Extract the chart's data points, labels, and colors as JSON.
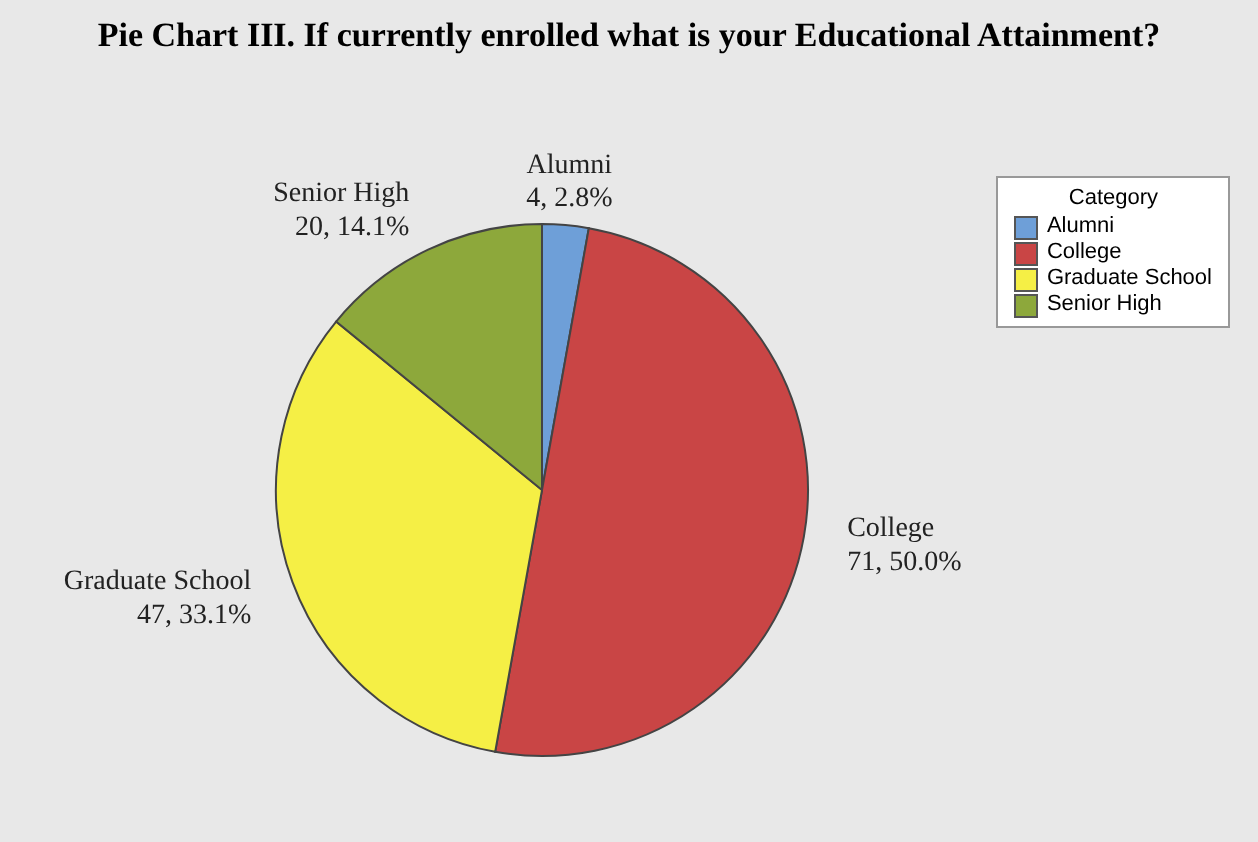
{
  "chart_data": {
    "type": "pie",
    "title": "Pie Chart III. If currently enrolled what is your Educational Attainment?",
    "categories": [
      "Alumni",
      "College",
      "Graduate School",
      "Senior High"
    ],
    "values": [
      4,
      71,
      47,
      20
    ],
    "value_labels": [
      "4, 2.8%",
      "71, 50.0%",
      "47, 33.1%",
      "20, 14.1%"
    ],
    "colors": [
      "#6e9fd8",
      "#c94545",
      "#f5ef45",
      "#8da83b"
    ],
    "legend_title": "Category",
    "legend": "top right"
  }
}
